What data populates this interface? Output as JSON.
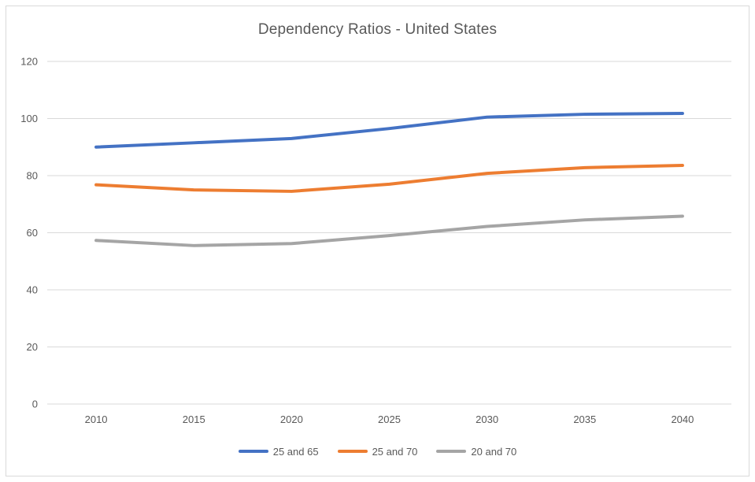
{
  "window": {
    "background": "#FFFFFF",
    "border_color": "#D9D9D9"
  },
  "chart_data": {
    "type": "line",
    "title": "Dependency Ratios - United States",
    "categories": [
      "2010",
      "2015",
      "2020",
      "2025",
      "2030",
      "2035",
      "2040"
    ],
    "series": [
      {
        "name": "25 and 65",
        "color": "#4472C4",
        "values": [
          90,
          91.5,
          93,
          96.5,
          100.5,
          101.5,
          101.8
        ]
      },
      {
        "name": "25 and 70",
        "color": "#ED7D31",
        "values": [
          76.8,
          75,
          74.5,
          77,
          80.8,
          82.8,
          83.6
        ]
      },
      {
        "name": "20 and 70",
        "color": "#A5A5A5",
        "values": [
          57.3,
          55.5,
          56.2,
          59,
          62.2,
          64.5,
          65.8
        ]
      }
    ],
    "xlabel": "",
    "ylabel": "",
    "y_ticks": [
      0,
      20,
      40,
      60,
      80,
      100,
      120
    ],
    "ylim": [
      0,
      120
    ],
    "grid": true,
    "legend_position": "bottom",
    "colors": {
      "grid": "#D9D9D9",
      "text": "#595959",
      "title": "#595959"
    }
  }
}
